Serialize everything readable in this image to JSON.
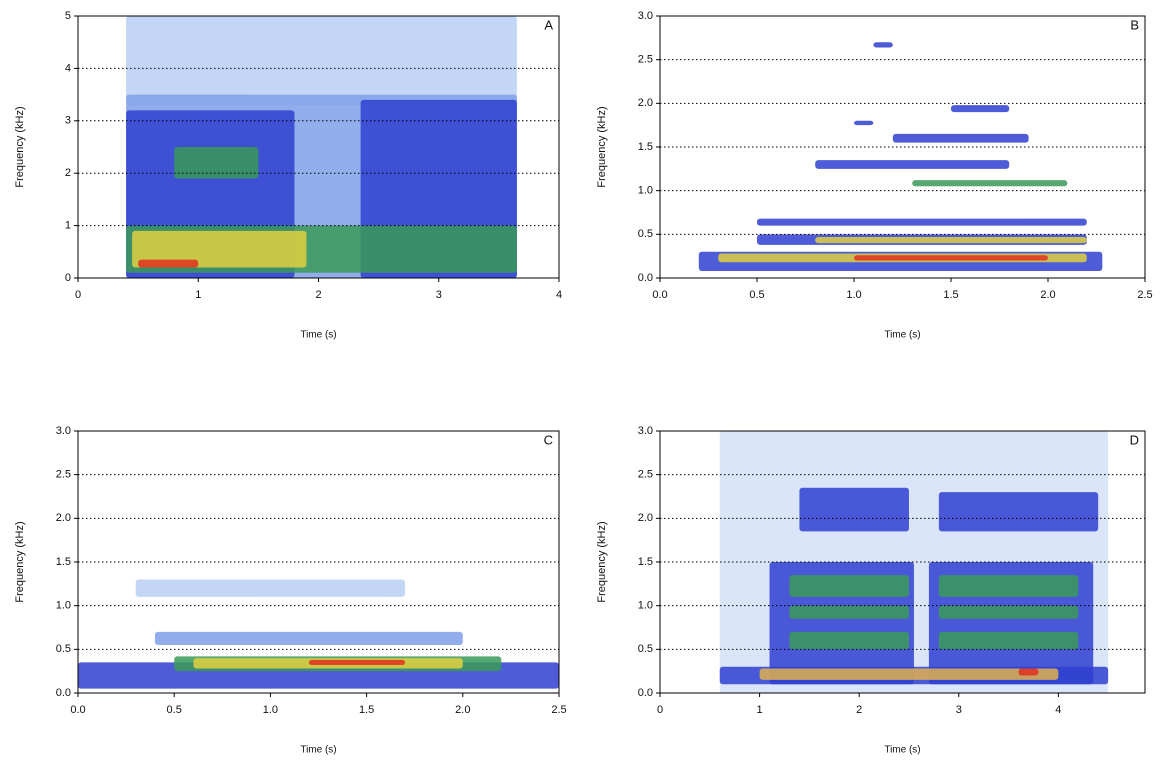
{
  "chart_data": [
    {
      "type": "spectrogram",
      "label": "A",
      "xlabel": "Time (s)",
      "ylabel": "Frequency (kHz)",
      "xlim": [
        0,
        4
      ],
      "xticks": [
        0,
        1,
        2,
        3,
        4
      ],
      "ylim": [
        0,
        5
      ],
      "yticks": [
        0,
        1,
        2,
        3,
        4,
        5
      ],
      "grid": true,
      "patches": [
        {
          "t": [
            0.4,
            3.65
          ],
          "f": [
            3.3,
            5
          ],
          "color": "#b9cff5"
        },
        {
          "t": [
            0.4,
            3.65
          ],
          "f": [
            0,
            3.5
          ],
          "color": "#7f9fe8"
        },
        {
          "t": [
            0.4,
            1.8
          ],
          "f": [
            0,
            3.2
          ],
          "color": "#2f3fd0"
        },
        {
          "t": [
            2.35,
            3.65
          ],
          "f": [
            0,
            3.4
          ],
          "color": "#2f3fd0"
        },
        {
          "t": [
            0.8,
            1.5
          ],
          "f": [
            1.9,
            2.5
          ],
          "color": "#3a9a58"
        },
        {
          "t": [
            0.4,
            3.65
          ],
          "f": [
            0.1,
            1.0
          ],
          "color": "#3a9a58"
        },
        {
          "t": [
            0.45,
            1.9
          ],
          "f": [
            0.2,
            0.9
          ],
          "color": "#e0d040"
        },
        {
          "t": [
            0.5,
            1.0
          ],
          "f": [
            0.2,
            0.35
          ],
          "color": "#e03020"
        }
      ]
    },
    {
      "type": "spectrogram",
      "label": "B",
      "xlabel": "Time (s)",
      "ylabel": "Frequency (kHz)",
      "xlim": [
        0,
        2.5
      ],
      "xticks": [
        {
          "value": 0,
          "label": "0.0"
        },
        0.5,
        {
          "value": 1,
          "label": "1.0"
        },
        1.5,
        {
          "value": 2,
          "label": "2.0"
        },
        2.5
      ],
      "ylim": [
        0,
        3
      ],
      "yticks": [
        {
          "value": 0,
          "label": "0.0"
        },
        0.5,
        {
          "value": 1,
          "label": "1.0"
        },
        1.5,
        {
          "value": 2,
          "label": "2.0"
        },
        2.5,
        {
          "value": 3,
          "label": "3.0"
        }
      ],
      "grid": true,
      "patches": [
        {
          "t": [
            0.2,
            2.28
          ],
          "f": [
            0.08,
            0.3
          ],
          "color": "#2f3fd0"
        },
        {
          "t": [
            0.3,
            2.2
          ],
          "f": [
            0.18,
            0.28
          ],
          "color": "#e0d040"
        },
        {
          "t": [
            1.0,
            2.0
          ],
          "f": [
            0.2,
            0.26
          ],
          "color": "#e03020"
        },
        {
          "t": [
            0.5,
            2.2
          ],
          "f": [
            0.38,
            0.5
          ],
          "color": "#2f3fd0"
        },
        {
          "t": [
            0.8,
            2.2
          ],
          "f": [
            0.4,
            0.47
          ],
          "color": "#e0d040"
        },
        {
          "t": [
            0.5,
            2.2
          ],
          "f": [
            0.6,
            0.68
          ],
          "color": "#2f3fd0"
        },
        {
          "t": [
            1.3,
            2.1
          ],
          "f": [
            1.05,
            1.12
          ],
          "color": "#3a9a58"
        },
        {
          "t": [
            0.8,
            1.8
          ],
          "f": [
            1.25,
            1.35
          ],
          "color": "#2f3fd0"
        },
        {
          "t": [
            1.2,
            1.9
          ],
          "f": [
            1.55,
            1.65
          ],
          "color": "#2f3fd0"
        },
        {
          "t": [
            1.0,
            1.1
          ],
          "f": [
            1.75,
            1.8
          ],
          "color": "#2f3fd0"
        },
        {
          "t": [
            1.5,
            1.8
          ],
          "f": [
            1.9,
            1.98
          ],
          "color": "#2f3fd0"
        },
        {
          "t": [
            1.1,
            1.2
          ],
          "f": [
            2.64,
            2.7
          ],
          "color": "#2f3fd0"
        }
      ]
    },
    {
      "type": "spectrogram",
      "label": "C",
      "xlabel": "Time (s)",
      "ylabel": "Frequency (kHz)",
      "xlim": [
        0,
        2.5
      ],
      "xticks": [
        {
          "value": 0,
          "label": "0.0"
        },
        0.5,
        {
          "value": 1,
          "label": "1.0"
        },
        1.5,
        {
          "value": 2,
          "label": "2.0"
        },
        2.5
      ],
      "ylim": [
        0,
        3
      ],
      "yticks": [
        {
          "value": 0,
          "label": "0.0"
        },
        0.5,
        {
          "value": 1,
          "label": "1.0"
        },
        1.5,
        {
          "value": 2,
          "label": "2.0"
        },
        2.5,
        {
          "value": 3,
          "label": "3.0"
        }
      ],
      "grid": true,
      "patches": [
        {
          "t": [
            0.3,
            1.7
          ],
          "f": [
            1.1,
            1.3
          ],
          "color": "#b9cff5"
        },
        {
          "t": [
            0.4,
            2.0
          ],
          "f": [
            0.55,
            0.7
          ],
          "color": "#7f9fe8"
        },
        {
          "t": [
            0,
            2.5
          ],
          "f": [
            0.05,
            0.35
          ],
          "color": "#2f3fd0"
        },
        {
          "t": [
            0.5,
            2.2
          ],
          "f": [
            0.25,
            0.42
          ],
          "color": "#3a9a58"
        },
        {
          "t": [
            0.6,
            2.0
          ],
          "f": [
            0.28,
            0.4
          ],
          "color": "#e0d040"
        },
        {
          "t": [
            1.2,
            1.7
          ],
          "f": [
            0.32,
            0.38
          ],
          "color": "#e03020"
        }
      ]
    },
    {
      "type": "spectrogram",
      "label": "D",
      "xlabel": "Time (s)",
      "ylabel": "Frequency (kHz)",
      "xlim": [
        0,
        4.87
      ],
      "xticks": [
        0,
        1,
        2,
        3,
        4
      ],
      "ylim": [
        0,
        3
      ],
      "yticks": [
        {
          "value": 0,
          "label": "0.0"
        },
        0.5,
        {
          "value": 1,
          "label": "1.0"
        },
        1.5,
        {
          "value": 2,
          "label": "2.0"
        },
        2.5,
        {
          "value": 3,
          "label": "3.0"
        }
      ],
      "grid": true,
      "patches": [
        {
          "t": [
            0.6,
            4.5
          ],
          "f": [
            0,
            3.0
          ],
          "color": "#d3e0f8"
        },
        {
          "t": [
            1.4,
            2.5
          ],
          "f": [
            1.85,
            2.35
          ],
          "color": "#2f3fd0"
        },
        {
          "t": [
            2.8,
            4.4
          ],
          "f": [
            1.85,
            2.3
          ],
          "color": "#2f3fd0"
        },
        {
          "t": [
            1.1,
            2.55
          ],
          "f": [
            0.1,
            1.5
          ],
          "color": "#2f3fd0"
        },
        {
          "t": [
            2.7,
            4.35
          ],
          "f": [
            0.1,
            1.5
          ],
          "color": "#2f3fd0"
        },
        {
          "t": [
            1.3,
            2.5
          ],
          "f": [
            1.1,
            1.35
          ],
          "color": "#3a9a58"
        },
        {
          "t": [
            2.8,
            4.2
          ],
          "f": [
            1.1,
            1.35
          ],
          "color": "#3a9a58"
        },
        {
          "t": [
            1.3,
            2.5
          ],
          "f": [
            0.85,
            1.0
          ],
          "color": "#3a9a58"
        },
        {
          "t": [
            2.8,
            4.2
          ],
          "f": [
            0.85,
            1.0
          ],
          "color": "#3a9a58"
        },
        {
          "t": [
            1.3,
            2.5
          ],
          "f": [
            0.5,
            0.7
          ],
          "color": "#3a9a58"
        },
        {
          "t": [
            2.8,
            4.2
          ],
          "f": [
            0.5,
            0.7
          ],
          "color": "#3a9a58"
        },
        {
          "t": [
            0.6,
            4.5
          ],
          "f": [
            0.1,
            0.3
          ],
          "color": "#2f3fd0"
        },
        {
          "t": [
            1.0,
            4.0
          ],
          "f": [
            0.15,
            0.28
          ],
          "color": "#e0b050"
        },
        {
          "t": [
            3.6,
            3.8
          ],
          "f": [
            0.2,
            0.28
          ],
          "color": "#e03020"
        }
      ]
    }
  ]
}
